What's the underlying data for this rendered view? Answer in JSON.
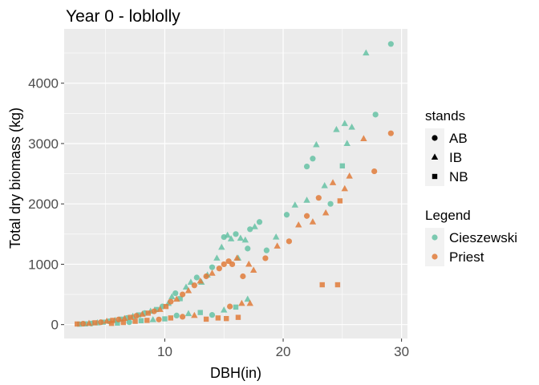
{
  "chart_data": {
    "type": "scatter",
    "title": "Year 0 - loblolly",
    "xlabel": "DBH(in)",
    "ylabel": "Total dry biomass (kg)",
    "xlim": [
      1.5,
      30.5
    ],
    "ylim": [
      -230,
      4900
    ],
    "x_ticks": [
      10,
      20,
      30
    ],
    "y_ticks": [
      0,
      1000,
      2000,
      3000,
      4000
    ],
    "x_tick_labels": [
      "10",
      "20",
      "30"
    ],
    "y_tick_labels": [
      "0",
      "1000",
      "2000",
      "3000",
      "4000"
    ],
    "grid": true,
    "legend_position": "right",
    "legends": [
      {
        "title": "stands",
        "entries": [
          {
            "label": "AB",
            "shape": "circle"
          },
          {
            "label": "IB",
            "shape": "triangle"
          },
          {
            "label": "NB",
            "shape": "square"
          }
        ]
      },
      {
        "title": "Legend",
        "entries": [
          {
            "label": "Cieszewski",
            "color": "#66c2a5"
          },
          {
            "label": "Priest",
            "color": "#e07b39"
          }
        ]
      }
    ],
    "series": [
      {
        "name": "Cieszewski",
        "color": "#66c2a5",
        "points": [
          {
            "x": 2.8,
            "y": 8,
            "s": "square"
          },
          {
            "x": 3.3,
            "y": 12,
            "s": "square"
          },
          {
            "x": 3.8,
            "y": 18,
            "s": "circle"
          },
          {
            "x": 4.3,
            "y": 28,
            "s": "triangle"
          },
          {
            "x": 4.8,
            "y": 40,
            "s": "square"
          },
          {
            "x": 5.3,
            "y": 55,
            "s": "circle"
          },
          {
            "x": 5.8,
            "y": 70,
            "s": "triangle"
          },
          {
            "x": 6.3,
            "y": 90,
            "s": "square"
          },
          {
            "x": 6.8,
            "y": 110,
            "s": "circle"
          },
          {
            "x": 7.3,
            "y": 135,
            "s": "triangle"
          },
          {
            "x": 7.8,
            "y": 160,
            "s": "square"
          },
          {
            "x": 8.3,
            "y": 190,
            "s": "circle"
          },
          {
            "x": 8.8,
            "y": 220,
            "s": "triangle"
          },
          {
            "x": 9.3,
            "y": 250,
            "s": "square"
          },
          {
            "x": 9.8,
            "y": 300,
            "s": "circle"
          },
          {
            "x": 10.3,
            "y": 350,
            "s": "triangle"
          },
          {
            "x": 10.6,
            "y": 460,
            "s": "triangle"
          },
          {
            "x": 10.9,
            "y": 520,
            "s": "circle"
          },
          {
            "x": 11.3,
            "y": 430,
            "s": "square"
          },
          {
            "x": 11.8,
            "y": 620,
            "s": "triangle"
          },
          {
            "x": 12.2,
            "y": 700,
            "s": "triangle"
          },
          {
            "x": 12.7,
            "y": 780,
            "s": "circle"
          },
          {
            "x": 13.1,
            "y": 700,
            "s": "triangle"
          },
          {
            "x": 13.6,
            "y": 820,
            "s": "triangle"
          },
          {
            "x": 14.0,
            "y": 950,
            "s": "circle"
          },
          {
            "x": 14.4,
            "y": 1100,
            "s": "triangle"
          },
          {
            "x": 14.8,
            "y": 1280,
            "s": "triangle"
          },
          {
            "x": 15.0,
            "y": 1450,
            "s": "circle"
          },
          {
            "x": 15.3,
            "y": 1480,
            "s": "triangle"
          },
          {
            "x": 15.6,
            "y": 1420,
            "s": "triangle"
          },
          {
            "x": 16.0,
            "y": 1500,
            "s": "circle"
          },
          {
            "x": 16.4,
            "y": 1430,
            "s": "triangle"
          },
          {
            "x": 16.8,
            "y": 1400,
            "s": "triangle"
          },
          {
            "x": 17.2,
            "y": 1580,
            "s": "circle"
          },
          {
            "x": 17.6,
            "y": 1620,
            "s": "triangle"
          },
          {
            "x": 18.0,
            "y": 1700,
            "s": "circle"
          },
          {
            "x": 17.0,
            "y": 1260,
            "s": "circle"
          },
          {
            "x": 16.2,
            "y": 1100,
            "s": "triangle"
          },
          {
            "x": 18.6,
            "y": 1230,
            "s": "circle"
          },
          {
            "x": 19.4,
            "y": 1450,
            "s": "triangle"
          },
          {
            "x": 20.3,
            "y": 1820,
            "s": "circle"
          },
          {
            "x": 21.0,
            "y": 1980,
            "s": "triangle"
          },
          {
            "x": 22.0,
            "y": 2620,
            "s": "circle"
          },
          {
            "x": 22.0,
            "y": 2060,
            "s": "triangle"
          },
          {
            "x": 22.5,
            "y": 2750,
            "s": "circle"
          },
          {
            "x": 22.8,
            "y": 2980,
            "s": "triangle"
          },
          {
            "x": 23.5,
            "y": 2300,
            "s": "triangle"
          },
          {
            "x": 24.0,
            "y": 2000,
            "s": "circle"
          },
          {
            "x": 24.5,
            "y": 3230,
            "s": "triangle"
          },
          {
            "x": 25.0,
            "y": 2630,
            "s": "square"
          },
          {
            "x": 25.2,
            "y": 3330,
            "s": "triangle"
          },
          {
            "x": 25.4,
            "y": 3000,
            "s": "triangle"
          },
          {
            "x": 25.8,
            "y": 3270,
            "s": "triangle"
          },
          {
            "x": 27.0,
            "y": 4500,
            "s": "triangle"
          },
          {
            "x": 27.8,
            "y": 3480,
            "s": "circle"
          },
          {
            "x": 29.1,
            "y": 4650,
            "s": "circle"
          },
          {
            "x": 6.0,
            "y": 25,
            "s": "square"
          },
          {
            "x": 7.0,
            "y": 40,
            "s": "circle"
          },
          {
            "x": 8.0,
            "y": 65,
            "s": "square"
          },
          {
            "x": 9.0,
            "y": 80,
            "s": "triangle"
          },
          {
            "x": 10.0,
            "y": 95,
            "s": "square"
          },
          {
            "x": 11.0,
            "y": 150,
            "s": "circle"
          },
          {
            "x": 12.0,
            "y": 180,
            "s": "triangle"
          },
          {
            "x": 13.0,
            "y": 200,
            "s": "square"
          },
          {
            "x": 14.0,
            "y": 160,
            "s": "circle"
          },
          {
            "x": 15.0,
            "y": 240,
            "s": "triangle"
          },
          {
            "x": 16.0,
            "y": 290,
            "s": "square"
          },
          {
            "x": 17.0,
            "y": 420,
            "s": "triangle"
          }
        ]
      },
      {
        "name": "Priest",
        "color": "#e07b39",
        "points": [
          {
            "x": 2.6,
            "y": 10,
            "s": "square"
          },
          {
            "x": 3.1,
            "y": 15,
            "s": "circle"
          },
          {
            "x": 3.6,
            "y": 20,
            "s": "triangle"
          },
          {
            "x": 4.1,
            "y": 30,
            "s": "square"
          },
          {
            "x": 4.6,
            "y": 40,
            "s": "circle"
          },
          {
            "x": 5.1,
            "y": 55,
            "s": "triangle"
          },
          {
            "x": 5.6,
            "y": 70,
            "s": "square"
          },
          {
            "x": 6.1,
            "y": 85,
            "s": "circle"
          },
          {
            "x": 6.6,
            "y": 100,
            "s": "triangle"
          },
          {
            "x": 7.1,
            "y": 120,
            "s": "square"
          },
          {
            "x": 7.6,
            "y": 145,
            "s": "circle"
          },
          {
            "x": 8.1,
            "y": 170,
            "s": "triangle"
          },
          {
            "x": 8.6,
            "y": 190,
            "s": "square"
          },
          {
            "x": 9.1,
            "y": 220,
            "s": "circle"
          },
          {
            "x": 9.6,
            "y": 250,
            "s": "triangle"
          },
          {
            "x": 10.1,
            "y": 300,
            "s": "square"
          },
          {
            "x": 10.5,
            "y": 380,
            "s": "circle"
          },
          {
            "x": 11.0,
            "y": 420,
            "s": "triangle"
          },
          {
            "x": 11.5,
            "y": 500,
            "s": "circle"
          },
          {
            "x": 12.0,
            "y": 560,
            "s": "triangle"
          },
          {
            "x": 12.5,
            "y": 650,
            "s": "circle"
          },
          {
            "x": 13.0,
            "y": 720,
            "s": "triangle"
          },
          {
            "x": 13.5,
            "y": 800,
            "s": "circle"
          },
          {
            "x": 14.0,
            "y": 850,
            "s": "triangle"
          },
          {
            "x": 14.6,
            "y": 930,
            "s": "circle"
          },
          {
            "x": 15.0,
            "y": 1000,
            "s": "circle"
          },
          {
            "x": 15.4,
            "y": 1050,
            "s": "circle"
          },
          {
            "x": 15.7,
            "y": 1000,
            "s": "circle"
          },
          {
            "x": 16.1,
            "y": 1100,
            "s": "triangle"
          },
          {
            "x": 16.6,
            "y": 800,
            "s": "circle"
          },
          {
            "x": 17.1,
            "y": 1000,
            "s": "triangle"
          },
          {
            "x": 17.5,
            "y": 900,
            "s": "triangle"
          },
          {
            "x": 18.5,
            "y": 1100,
            "s": "circle"
          },
          {
            "x": 19.5,
            "y": 1300,
            "s": "triangle"
          },
          {
            "x": 20.5,
            "y": 1380,
            "s": "circle"
          },
          {
            "x": 21.3,
            "y": 1650,
            "s": "triangle"
          },
          {
            "x": 22.0,
            "y": 1800,
            "s": "circle"
          },
          {
            "x": 22.5,
            "y": 1700,
            "s": "triangle"
          },
          {
            "x": 23.0,
            "y": 2100,
            "s": "circle"
          },
          {
            "x": 23.6,
            "y": 1850,
            "s": "triangle"
          },
          {
            "x": 24.2,
            "y": 2350,
            "s": "triangle"
          },
          {
            "x": 24.8,
            "y": 2050,
            "s": "square"
          },
          {
            "x": 25.2,
            "y": 2250,
            "s": "triangle"
          },
          {
            "x": 25.6,
            "y": 2460,
            "s": "triangle"
          },
          {
            "x": 26.8,
            "y": 3080,
            "s": "triangle"
          },
          {
            "x": 27.7,
            "y": 2540,
            "s": "circle"
          },
          {
            "x": 29.1,
            "y": 3170,
            "s": "circle"
          },
          {
            "x": 23.3,
            "y": 660,
            "s": "square"
          },
          {
            "x": 24.6,
            "y": 660,
            "s": "square"
          },
          {
            "x": 5.5,
            "y": 20,
            "s": "square"
          },
          {
            "x": 6.5,
            "y": 35,
            "s": "square"
          },
          {
            "x": 7.5,
            "y": 55,
            "s": "square"
          },
          {
            "x": 8.5,
            "y": 70,
            "s": "square"
          },
          {
            "x": 9.5,
            "y": 85,
            "s": "circle"
          },
          {
            "x": 10.5,
            "y": 110,
            "s": "square"
          },
          {
            "x": 11.5,
            "y": 130,
            "s": "circle"
          },
          {
            "x": 12.5,
            "y": 150,
            "s": "triangle"
          },
          {
            "x": 13.5,
            "y": 90,
            "s": "square"
          },
          {
            "x": 14.5,
            "y": 110,
            "s": "square"
          },
          {
            "x": 15.5,
            "y": 300,
            "s": "circle"
          },
          {
            "x": 16.5,
            "y": 350,
            "s": "triangle"
          },
          {
            "x": 15.2,
            "y": 100,
            "s": "square"
          },
          {
            "x": 16.2,
            "y": 120,
            "s": "square"
          },
          {
            "x": 17.2,
            "y": 350,
            "s": "triangle"
          }
        ]
      }
    ]
  }
}
